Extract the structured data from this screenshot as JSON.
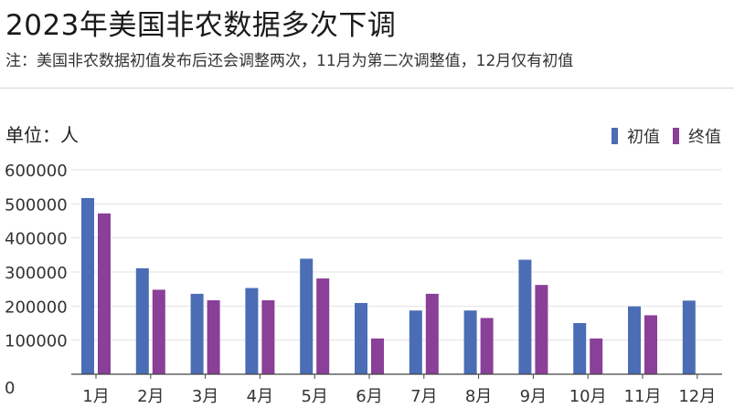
{
  "title": "2023年美国非农数据多次下调",
  "subtitle": "注：美国非农数据初值发布后还会调整两次，11月为第二次调整值，12月仅有初值",
  "unit_label": "单位：人",
  "colors": {
    "initial": "#4a6db5",
    "final": "#8a3f98",
    "grid": "#e3e3e3",
    "axis": "#444444"
  },
  "chart_data": {
    "type": "bar",
    "categories": [
      "1月",
      "2月",
      "3月",
      "4月",
      "5月",
      "6月",
      "7月",
      "8月",
      "9月",
      "10月",
      "11月",
      "12月"
    ],
    "series": [
      {
        "name": "初值",
        "values": [
          517000,
          311000,
          236000,
          253000,
          339000,
          209000,
          187000,
          187000,
          336000,
          150000,
          199000,
          216000
        ]
      },
      {
        "name": "终值",
        "values": [
          472000,
          248000,
          217000,
          217000,
          281000,
          105000,
          236000,
          165000,
          262000,
          105000,
          173000,
          null
        ]
      }
    ],
    "ylim": [
      0,
      600000
    ],
    "yticks": [
      0,
      100000,
      200000,
      300000,
      400000,
      500000,
      600000
    ],
    "ytick_labels": [
      "0",
      "100000",
      "200000",
      "300000",
      "400000",
      "500000",
      "600000"
    ],
    "legend": [
      "初值",
      "终值"
    ],
    "legend_position": "top-right",
    "grid": true
  }
}
